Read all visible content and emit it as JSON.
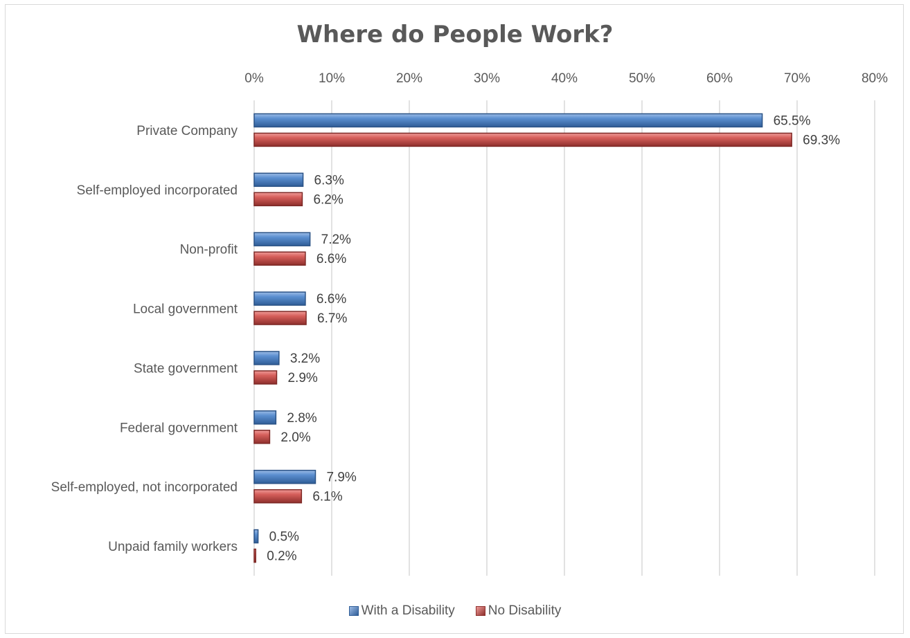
{
  "chart_data": {
    "type": "bar",
    "orientation": "horizontal",
    "title": "Where do People Work?",
    "categories": [
      "Private Company",
      "Self-employed incorporated",
      "Non-profit",
      "Local government",
      "State government",
      "Federal government",
      "Self-employed, not incorporated",
      "Unpaid family workers"
    ],
    "series": [
      {
        "name": "With a Disability",
        "color": "#4f81bd",
        "values": [
          65.5,
          6.3,
          7.2,
          6.6,
          3.2,
          2.8,
          7.9,
          0.5
        ],
        "labels": [
          "65.5%",
          "6.3%",
          "7.2%",
          "6.6%",
          "3.2%",
          "2.8%",
          "7.9%",
          "0.5%"
        ]
      },
      {
        "name": "No Disability",
        "color": "#c0504d",
        "values": [
          69.3,
          6.2,
          6.6,
          6.7,
          2.9,
          2.0,
          6.1,
          0.2
        ],
        "labels": [
          "69.3%",
          "6.2%",
          "6.6%",
          "6.7%",
          "2.9%",
          "2.0%",
          "6.1%",
          "0.2%"
        ]
      }
    ],
    "xlim": [
      0,
      80
    ],
    "xticks": [
      0,
      10,
      20,
      30,
      40,
      50,
      60,
      70,
      80
    ],
    "xtick_labels": [
      "0%",
      "10%",
      "20%",
      "30%",
      "40%",
      "50%",
      "60%",
      "70%",
      "80%"
    ],
    "x_axis_position": "top",
    "grid": true,
    "legend_position": "bottom"
  }
}
